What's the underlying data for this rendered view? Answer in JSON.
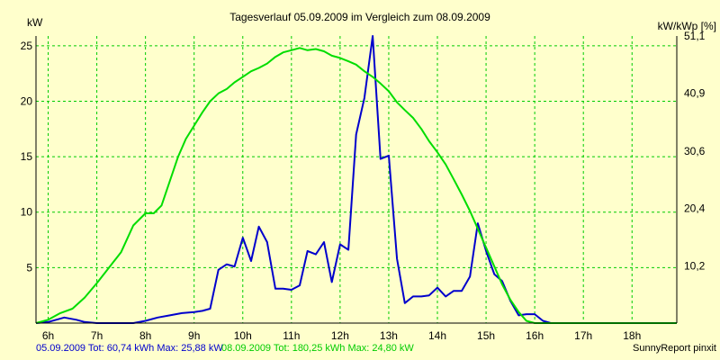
{
  "chart_data": {
    "type": "line",
    "title": "Tagesverlauf 05.09.2009 im Vergleich zum 08.09.2009",
    "ylabel_left": "kW",
    "ylabel_right": "kW/kWp [%]",
    "x_tick_labels": [
      "6h",
      "7h",
      "8h",
      "9h",
      "10h",
      "11h",
      "12h",
      "13h",
      "14h",
      "15h",
      "16h",
      "17h",
      "18h"
    ],
    "x_tick_values": [
      6,
      7,
      8,
      9,
      10,
      11,
      12,
      13,
      14,
      15,
      16,
      17,
      18
    ],
    "xlim": [
      5.75,
      18.92
    ],
    "ylim_left": [
      0,
      25.88
    ],
    "y_tick_labels_left": [
      "5",
      "10",
      "15",
      "20",
      "25"
    ],
    "y_tick_values_left": [
      5,
      10,
      15,
      20,
      25
    ],
    "ylim_right": [
      0,
      51.1
    ],
    "y_tick_labels_right": [
      "10,2",
      "20,4",
      "30,6",
      "40,9",
      "51,1"
    ],
    "y_tick_values_right": [
      10.2,
      20.4,
      30.6,
      40.9,
      51.1
    ],
    "grid": true,
    "series": [
      {
        "name": "05.09.2009",
        "color": "#0000cc",
        "x": [
          5.75,
          6.0,
          6.33,
          6.58,
          6.75,
          7.0,
          7.25,
          7.5,
          7.75,
          8.0,
          8.25,
          8.5,
          8.75,
          9.0,
          9.17,
          9.33,
          9.5,
          9.67,
          9.83,
          10.0,
          10.17,
          10.33,
          10.5,
          10.67,
          10.83,
          11.0,
          11.17,
          11.33,
          11.5,
          11.67,
          11.83,
          12.0,
          12.17,
          12.33,
          12.5,
          12.67,
          12.83,
          13.0,
          13.17,
          13.33,
          13.5,
          13.67,
          13.83,
          14.0,
          14.17,
          14.33,
          14.5,
          14.67,
          14.83,
          15.0,
          15.17,
          15.33,
          15.5,
          15.67,
          15.83,
          16.0,
          16.17,
          16.33,
          16.5,
          16.67,
          16.83,
          17.0,
          17.17,
          17.33,
          17.5,
          17.67,
          17.83,
          18.0,
          18.17,
          18.33,
          18.5,
          18.67,
          18.92
        ],
        "y": [
          0,
          0.1,
          0.5,
          0.3,
          0.1,
          0,
          0,
          0,
          0,
          0.2,
          0.5,
          0.7,
          0.9,
          1.0,
          1.1,
          1.3,
          4.8,
          5.3,
          5.1,
          7.7,
          5.6,
          8.7,
          7.3,
          3.1,
          3.1,
          3.0,
          3.4,
          6.5,
          6.2,
          7.3,
          3.7,
          7.1,
          6.6,
          17.0,
          20.3,
          25.88,
          14.8,
          15.1,
          5.8,
          1.8,
          2.4,
          2.4,
          2.5,
          3.2,
          2.4,
          2.9,
          2.9,
          4.2,
          9.0,
          6.5,
          4.4,
          3.8,
          2.0,
          0.7,
          0.8,
          0.8,
          0.2,
          0,
          0,
          0,
          0,
          0,
          0,
          0,
          0,
          0,
          0,
          0,
          0,
          0,
          0,
          0,
          0
        ]
      },
      {
        "name": "08.09.2009",
        "color": "#00dd00",
        "x": [
          5.75,
          6.0,
          6.25,
          6.5,
          6.75,
          7.0,
          7.25,
          7.5,
          7.75,
          8.0,
          8.17,
          8.33,
          8.5,
          8.67,
          8.83,
          9.0,
          9.17,
          9.33,
          9.5,
          9.67,
          9.83,
          10.0,
          10.17,
          10.33,
          10.5,
          10.67,
          10.83,
          11.0,
          11.17,
          11.33,
          11.5,
          11.67,
          11.83,
          12.0,
          12.17,
          12.33,
          12.5,
          12.67,
          12.83,
          13.0,
          13.17,
          13.33,
          13.5,
          13.67,
          13.83,
          14.0,
          14.17,
          14.33,
          14.5,
          14.67,
          14.83,
          15.0,
          15.17,
          15.33,
          15.5,
          15.67,
          15.83,
          16.0,
          16.17,
          16.33,
          16.5,
          16.67,
          16.83,
          17.0,
          17.17,
          17.33,
          17.5,
          17.67,
          17.83,
          18.0,
          18.17,
          18.33,
          18.5,
          18.67,
          18.92
        ],
        "y": [
          0,
          0.3,
          0.9,
          1.3,
          2.3,
          3.6,
          5.0,
          6.4,
          8.8,
          9.9,
          9.9,
          10.6,
          12.8,
          15.0,
          16.6,
          17.8,
          19.0,
          20.0,
          20.7,
          21.1,
          21.7,
          22.2,
          22.7,
          23.0,
          23.4,
          24.0,
          24.4,
          24.6,
          24.8,
          24.6,
          24.7,
          24.5,
          24.1,
          23.9,
          23.6,
          23.3,
          22.7,
          22.2,
          21.6,
          20.9,
          19.9,
          19.2,
          18.5,
          17.5,
          16.4,
          15.4,
          14.3,
          13.0,
          11.6,
          10.1,
          8.5,
          6.8,
          5.1,
          3.5,
          2.1,
          1.0,
          0.2,
          0,
          0,
          0,
          0,
          0,
          0,
          0,
          0,
          0,
          0,
          0,
          0,
          0,
          0,
          0,
          0,
          0,
          0
        ]
      }
    ]
  },
  "footer": {
    "series1_text": "05.09.2009 Tot: 60,74 kWh Max: 25,88 kW",
    "series2_text": "08.09.2009 Tot: 180,25 kWh Max: 24,80 kW",
    "credit": "SunnyReport pinxit"
  },
  "colors": {
    "background": "#ffffcc",
    "grid": "#00cc00",
    "axis": "#000000"
  }
}
